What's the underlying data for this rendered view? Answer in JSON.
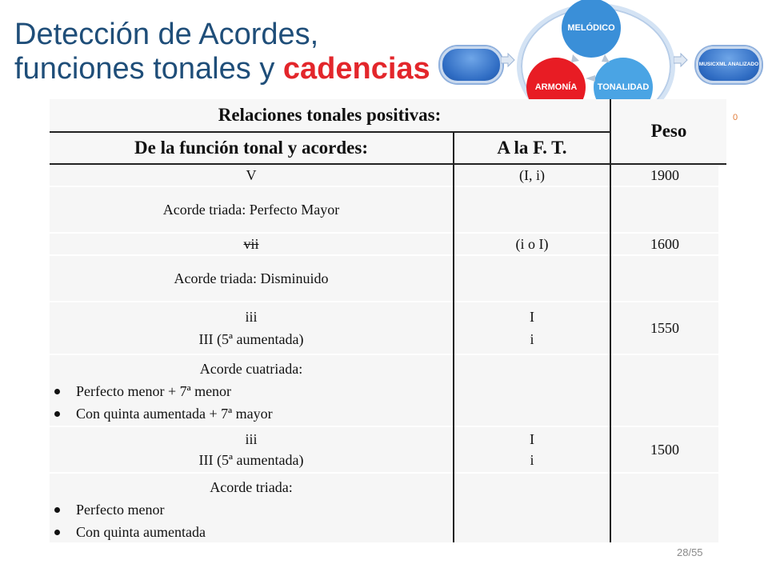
{
  "title": {
    "line1": "Detección de Acordes,",
    "line2_plain": "funciones tonales y ",
    "line2_accent": "cadencias"
  },
  "diagram": {
    "left_pill": "",
    "node_top": "MELÓDICO",
    "node_left": "ARMONÍA",
    "node_right": "TONALIDAD",
    "right_pill": "MUSICXML ANALIZADO",
    "colors": {
      "melodico": "#3a8fd8",
      "armonia": "#e81c24",
      "tonalidad": "#4aa4e4"
    }
  },
  "table": {
    "header_main": "Relaciones tonales positivas:",
    "header_peso": "Peso",
    "header_col1": "De la función tonal y acordes:",
    "header_col2": "A la F. T.",
    "rows": [
      {
        "c1": "V",
        "c2": "(I, i)",
        "c3": "1900"
      },
      {
        "c1": "Acorde triada: Perfecto Mayor",
        "c2": "",
        "c3": ""
      },
      {
        "c1": "vii",
        "c2": "(i o I)",
        "c3": "1600"
      },
      {
        "c1": "Acorde triada: Disminuido",
        "c2": "",
        "c3": ""
      },
      {
        "c1a": "iii",
        "c1b": "III (5ª aumentada)",
        "c2a": "I",
        "c2b": "i",
        "c3": "1550"
      },
      {
        "head": "Acorde cuatriada:",
        "b1": "Perfecto menor + 7ª menor",
        "b2": "Con quinta aumentada + 7ª mayor"
      },
      {
        "c1a": "iii",
        "c1b": "III (5ª aumentada)",
        "c2a": "I",
        "c2b": "i",
        "c3": "1500"
      },
      {
        "head": "Acorde triada:",
        "b1": "Perfecto menor",
        "b2": "Con quinta aumentada"
      }
    ]
  },
  "stray_mark": "0",
  "page_number": "28/55"
}
